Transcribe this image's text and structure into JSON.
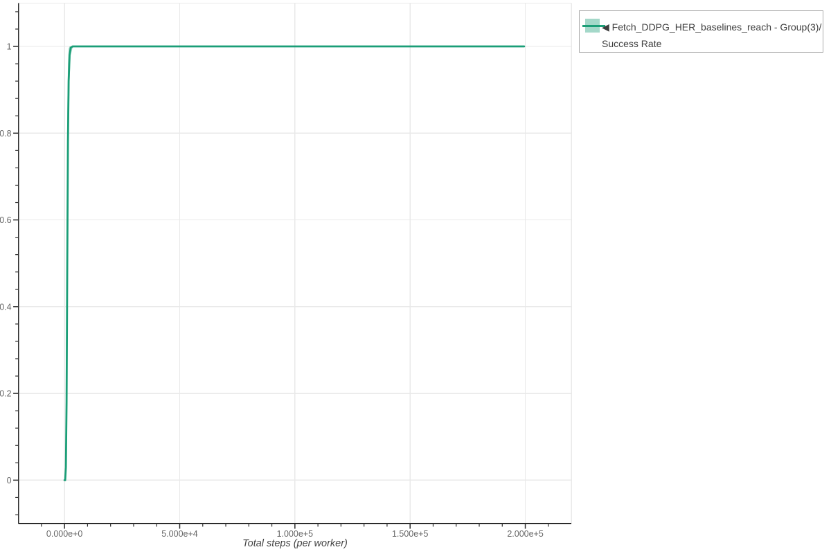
{
  "chart_data": {
    "type": "line",
    "title": "",
    "xlabel": "Total steps (per worker)",
    "ylabel": "",
    "xlim": [
      -20000,
      220000
    ],
    "ylim": [
      -0.1,
      1.1
    ],
    "grid": true,
    "x_ticks": {
      "values": [
        0,
        50000,
        100000,
        150000,
        200000
      ],
      "labels": [
        "0.000e+0",
        "5.000e+4",
        "1.000e+5",
        "1.500e+5",
        "2.000e+5"
      ],
      "minor_step": 10000
    },
    "y_ticks": {
      "values": [
        0,
        0.2,
        0.4,
        0.6,
        0.8,
        1
      ],
      "labels": [
        "0",
        "0.2",
        "0.4",
        "0.6",
        "0.8",
        "1"
      ],
      "minor_step": 0.04
    },
    "colors": {
      "line": "#1b9e77",
      "band": "rgba(27,158,119,0.4)",
      "grid": "#e9e9e9",
      "spine": "#2b2b2b",
      "tick_label": "#666666",
      "axis_label": "#444444",
      "legend_border": "#a9a9a9",
      "legend_text": "#3d3d3d"
    },
    "legend": {
      "position": "top-right",
      "entries": [
        {
          "label": "◀ Fetch_DDPG_HER_baselines_reach - Group(3)/Success Rate",
          "line_color": "#1b9e77",
          "band_color": "rgba(27,158,119,0.4)"
        }
      ]
    },
    "series": [
      {
        "name": "Fetch_DDPG_HER_baselines_reach - Group(3)/Success Rate",
        "x": [
          0,
          300,
          600,
          900,
          1200,
          1500,
          1800,
          2200,
          2700,
          3500,
          5000,
          10000,
          25000,
          50000,
          75000,
          100000,
          125000,
          150000,
          175000,
          199500
        ],
        "y": [
          0,
          0,
          0.03,
          0.18,
          0.5,
          0.78,
          0.92,
          0.98,
          0.997,
          1,
          1,
          1,
          1,
          1,
          1,
          1,
          1,
          1,
          1,
          1
        ],
        "band_upper": [
          0,
          0.02,
          0.2,
          0.55,
          0.85,
          0.96,
          0.995,
          1,
          1,
          1,
          1,
          1,
          1,
          1,
          1,
          1,
          1,
          1,
          1,
          1
        ],
        "band_lower": [
          0,
          0,
          0,
          0.03,
          0.18,
          0.5,
          0.78,
          0.92,
          0.98,
          0.997,
          1,
          1,
          1,
          1,
          1,
          1,
          1,
          1,
          1,
          1
        ]
      }
    ]
  }
}
